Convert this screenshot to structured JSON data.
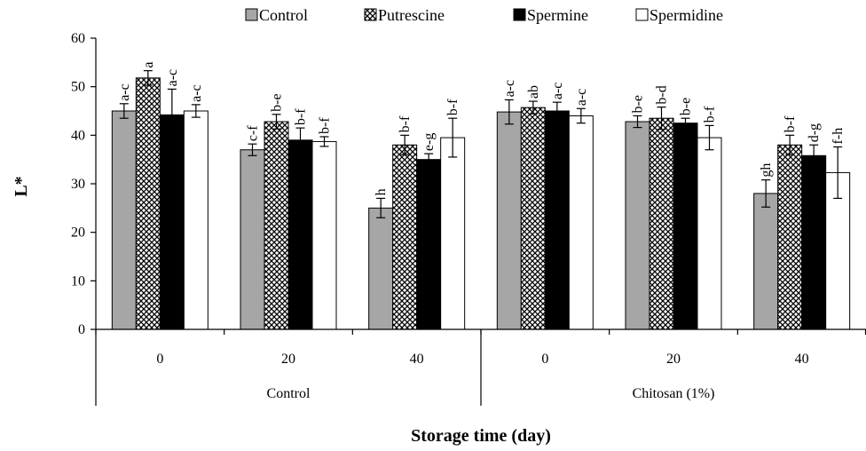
{
  "chart_data": {
    "type": "bar",
    "ylabel": "L*",
    "xlabel": "Storage time (day)",
    "ylim": [
      0,
      60
    ],
    "yticks": [
      0,
      10,
      20,
      30,
      40,
      50,
      60
    ],
    "grid": false,
    "legend_position": "top",
    "groups": [
      {
        "label": "Control",
        "categories": [
          "0",
          "20",
          "40"
        ]
      },
      {
        "label": "Chitosan (1%)",
        "categories": [
          "0",
          "20",
          "40"
        ]
      }
    ],
    "series": [
      {
        "name": "Control",
        "fill": "#a6a6a6",
        "pattern": "solid",
        "values": [
          45.0,
          37.0,
          25.0,
          44.8,
          42.8,
          28.0
        ],
        "errors": [
          1.5,
          1.2,
          2.0,
          2.5,
          1.2,
          2.8
        ],
        "labels": [
          "a-c",
          "c-f",
          "h",
          "a-c",
          "b-e",
          "gh"
        ]
      },
      {
        "name": "Putrescine",
        "fill": "#ffffff",
        "pattern": "checker",
        "values": [
          51.8,
          42.8,
          38.0,
          45.7,
          43.5,
          38.0
        ],
        "errors": [
          1.5,
          1.5,
          2.0,
          1.3,
          2.3,
          2.0
        ],
        "labels": [
          "a",
          "b-e",
          "b-f",
          "ab",
          "b-d",
          "b-f"
        ]
      },
      {
        "name": "Spermine",
        "fill": "#000000",
        "pattern": "solid",
        "values": [
          44.2,
          39.0,
          35.0,
          45.0,
          42.5,
          35.8
        ],
        "errors": [
          5.3,
          2.5,
          1.2,
          1.8,
          1.0,
          2.2
        ],
        "labels": [
          "a-c",
          "b-f",
          "e-g",
          "a-c",
          "b-e",
          "d-g"
        ]
      },
      {
        "name": "Spermidine",
        "fill": "#ffffff",
        "pattern": "solid",
        "values": [
          45.0,
          38.7,
          39.5,
          44.0,
          39.5,
          32.3
        ],
        "errors": [
          1.3,
          1.0,
          4.0,
          1.5,
          2.5,
          5.3
        ],
        "labels": [
          "a-c",
          "b-f",
          "b-f",
          "a-c",
          "b-f",
          "f-h"
        ]
      }
    ]
  }
}
